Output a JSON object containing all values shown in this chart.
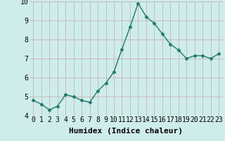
{
  "x": [
    0,
    1,
    2,
    3,
    4,
    5,
    6,
    7,
    8,
    9,
    10,
    11,
    12,
    13,
    14,
    15,
    16,
    17,
    18,
    19,
    20,
    21,
    22,
    23
  ],
  "y": [
    4.8,
    4.6,
    4.3,
    4.5,
    5.1,
    5.0,
    4.8,
    4.7,
    5.3,
    5.7,
    6.3,
    7.5,
    8.65,
    9.9,
    9.2,
    8.85,
    8.3,
    7.75,
    7.45,
    7.0,
    7.15,
    7.15,
    7.0,
    7.25
  ],
  "xlabel": "Humidex (Indice chaleur)",
  "ylabel": "",
  "ylim": [
    4,
    10
  ],
  "xlim_min": -0.5,
  "xlim_max": 23.5,
  "yticks": [
    4,
    5,
    6,
    7,
    8,
    9,
    10
  ],
  "xticks": [
    0,
    1,
    2,
    3,
    4,
    5,
    6,
    7,
    8,
    9,
    10,
    11,
    12,
    13,
    14,
    15,
    16,
    17,
    18,
    19,
    20,
    21,
    22,
    23
  ],
  "line_color": "#1e7a6d",
  "marker": "D",
  "marker_size": 2.5,
  "bg_color": "#ceecea",
  "grid_color": "#c8a8a8",
  "xlabel_fontsize": 8,
  "tick_fontsize": 7,
  "line_width": 1.0
}
